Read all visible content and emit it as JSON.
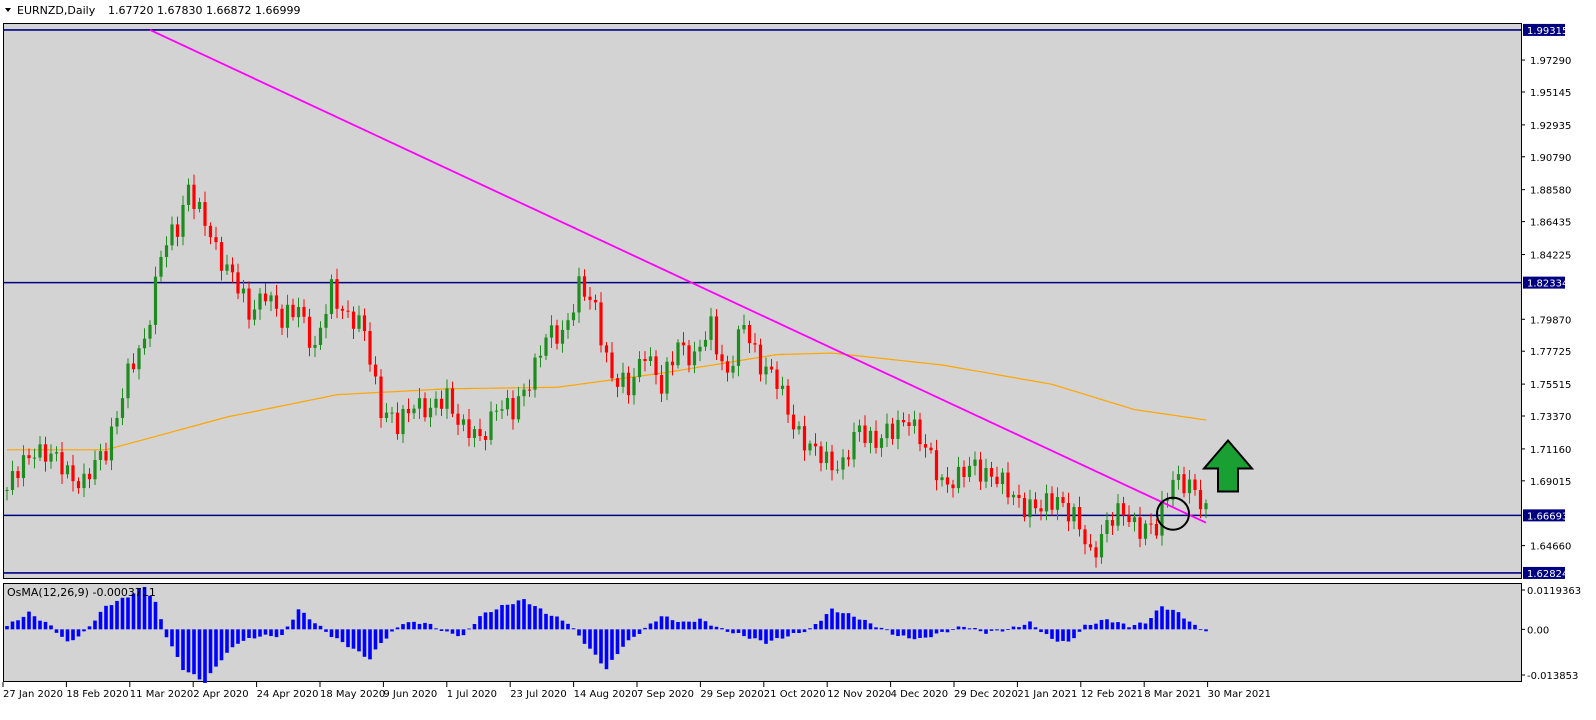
{
  "header": {
    "symbol": "EURNZD,Daily",
    "ohlc": "1.67720 1.67830 1.66872 1.66999"
  },
  "osma": {
    "label": "OsMA(12,26,9) -0.0003711"
  },
  "colors": {
    "background": "#d3d3d3",
    "bull_candle": "#1e8c1e",
    "bear_candle": "#ff0000",
    "trendline": "#ff00ff",
    "moving_average": "#ffa500",
    "level_lines": "#000080",
    "osma_bars": "#0000ff",
    "arrow": "#1aa032"
  },
  "chart_data": [
    {
      "type": "candlestick",
      "title": "",
      "y_ticks": [
        1.6466,
        1.69015,
        1.7116,
        1.7337,
        1.75515,
        1.77725,
        1.7987,
        1.84225,
        1.86435,
        1.8858,
        1.9079,
        1.92935,
        1.95145,
        1.9729
      ],
      "ylim": [
        1.6282,
        1.9931
      ],
      "x_ticks": [
        "27 Jan 2020",
        "18 Feb 2020",
        "11 Mar 2020",
        "2 Apr 2020",
        "24 Apr 2020",
        "18 May 2020",
        "9 Jun 2020",
        "1 Jul 2020",
        "23 Jul 2020",
        "14 Aug 2020",
        "7 Sep 2020",
        "29 Sep 2020",
        "21 Oct 2020",
        "12 Nov 2020",
        "4 Dec 2020",
        "29 Dec 2020",
        "21 Jan 2021",
        "12 Feb 2021",
        "8 Mar 2021",
        "30 Mar 2021"
      ],
      "horizontal_levels": [
        {
          "value": 1.99315,
          "label": "1.99315"
        },
        {
          "value": 1.82334,
          "label": "1.82334"
        },
        {
          "value": 1.66693,
          "label": "1.66693"
        },
        {
          "value": 1.62824,
          "label": "1.62824"
        }
      ],
      "series_anchor_closes": [
        [
          0,
          1.684
        ],
        [
          5,
          1.713
        ],
        [
          10,
          1.7
        ],
        [
          14,
          1.688
        ],
        [
          18,
          1.712
        ],
        [
          22,
          1.76
        ],
        [
          25,
          1.785
        ],
        [
          28,
          1.842
        ],
        [
          31,
          1.86
        ],
        [
          33,
          1.89
        ],
        [
          35,
          1.87
        ],
        [
          38,
          1.845
        ],
        [
          41,
          1.83
        ],
        [
          44,
          1.8
        ],
        [
          47,
          1.82
        ],
        [
          50,
          1.795
        ],
        [
          53,
          1.81
        ],
        [
          56,
          1.775
        ],
        [
          59,
          1.82
        ],
        [
          62,
          1.8
        ],
        [
          65,
          1.79
        ],
        [
          68,
          1.74
        ],
        [
          71,
          1.725
        ],
        [
          74,
          1.745
        ],
        [
          77,
          1.735
        ],
        [
          80,
          1.748
        ],
        [
          83,
          1.725
        ],
        [
          86,
          1.717
        ],
        [
          89,
          1.742
        ],
        [
          92,
          1.735
        ],
        [
          95,
          1.76
        ],
        [
          98,
          1.785
        ],
        [
          101,
          1.79
        ],
        [
          104,
          1.82
        ],
        [
          107,
          1.805
        ],
        [
          110,
          1.76
        ],
        [
          113,
          1.75
        ],
        [
          116,
          1.78
        ],
        [
          119,
          1.75
        ],
        [
          122,
          1.785
        ],
        [
          125,
          1.77
        ],
        [
          128,
          1.795
        ],
        [
          131,
          1.76
        ],
        [
          134,
          1.795
        ],
        [
          137,
          1.77
        ],
        [
          140,
          1.755
        ],
        [
          143,
          1.73
        ],
        [
          146,
          1.71
        ],
        [
          149,
          1.705
        ],
        [
          152,
          1.7
        ],
        [
          155,
          1.725
        ],
        [
          158,
          1.718
        ],
        [
          161,
          1.722
        ],
        [
          164,
          1.735
        ],
        [
          167,
          1.71
        ],
        [
          170,
          1.69
        ],
        [
          173,
          1.692
        ],
        [
          176,
          1.7
        ],
        [
          179,
          1.695
        ],
        [
          182,
          1.682
        ],
        [
          185,
          1.675
        ],
        [
          188,
          1.67
        ],
        [
          191,
          1.68
        ],
        [
          194,
          1.665
        ],
        [
          197,
          1.64
        ],
        [
          200,
          1.662
        ],
        [
          203,
          1.668
        ],
        [
          206,
          1.66
        ],
        [
          209,
          1.656
        ],
        [
          212,
          1.695
        ],
        [
          215,
          1.685
        ],
        [
          218,
          1.67
        ]
      ],
      "moving_average_anchors": [
        [
          0,
          1.711
        ],
        [
          18,
          1.711
        ],
        [
          40,
          1.733
        ],
        [
          60,
          1.748
        ],
        [
          80,
          1.752
        ],
        [
          100,
          1.753
        ],
        [
          120,
          1.763
        ],
        [
          140,
          1.775
        ],
        [
          150,
          1.776
        ],
        [
          170,
          1.768
        ],
        [
          190,
          1.755
        ],
        [
          205,
          1.738
        ],
        [
          218,
          1.731
        ]
      ],
      "trendline": {
        "from": [
          26,
          1.99315
        ],
        "to": [
          218,
          1.662
        ]
      },
      "annotations": [
        {
          "type": "circle",
          "at": [
            212,
            1.668
          ]
        },
        {
          "type": "up-arrow",
          "at": [
            222,
            1.685
          ]
        }
      ]
    },
    {
      "type": "histogram",
      "title": "OsMA(12,26,9)",
      "y_ticks": [
        0.0119363,
        0.0,
        -0.0138531
      ],
      "y_tick_labels": [
        "0.0119363",
        "0.00",
        "-0.013853"
      ],
      "anchors": [
        [
          0,
          0.001
        ],
        [
          4,
          0.005
        ],
        [
          8,
          0.001
        ],
        [
          11,
          -0.004
        ],
        [
          14,
          -0.001
        ],
        [
          18,
          0.007
        ],
        [
          22,
          0.01
        ],
        [
          25,
          0.013
        ],
        [
          27,
          0.008
        ],
        [
          29,
          -0.002
        ],
        [
          32,
          -0.012
        ],
        [
          36,
          -0.016
        ],
        [
          39,
          -0.009
        ],
        [
          42,
          -0.004
        ],
        [
          46,
          -0.002
        ],
        [
          50,
          -0.002
        ],
        [
          53,
          0.006
        ],
        [
          56,
          0.002
        ],
        [
          59,
          -0.002
        ],
        [
          63,
          -0.006
        ],
        [
          66,
          -0.009
        ],
        [
          68,
          -0.004
        ],
        [
          72,
          0.002
        ],
        [
          76,
          0.002
        ],
        [
          80,
          -0.001
        ],
        [
          83,
          -0.002
        ],
        [
          86,
          0.004
        ],
        [
          90,
          0.007
        ],
        [
          94,
          0.009
        ],
        [
          98,
          0.005
        ],
        [
          102,
          0.002
        ],
        [
          106,
          -0.006
        ],
        [
          109,
          -0.012
        ],
        [
          112,
          -0.005
        ],
        [
          115,
          -0.001
        ],
        [
          119,
          0.004
        ],
        [
          123,
          0.002
        ],
        [
          126,
          0.003
        ],
        [
          130,
          0.0
        ],
        [
          134,
          -0.002
        ],
        [
          138,
          -0.004
        ],
        [
          142,
          -0.002
        ],
        [
          146,
          0.0
        ],
        [
          150,
          0.006
        ],
        [
          154,
          0.004
        ],
        [
          158,
          0.001
        ],
        [
          162,
          -0.002
        ],
        [
          166,
          -0.003
        ],
        [
          170,
          -0.001
        ],
        [
          174,
          0.001
        ],
        [
          178,
          -0.001
        ],
        [
          182,
          0.0
        ],
        [
          186,
          0.002
        ],
        [
          190,
          -0.003
        ],
        [
          193,
          -0.004
        ],
        [
          196,
          0.001
        ],
        [
          200,
          0.003
        ],
        [
          204,
          0.001
        ],
        [
          207,
          0.002
        ],
        [
          210,
          0.007
        ],
        [
          213,
          0.005
        ],
        [
          216,
          0.001
        ],
        [
          218,
          -0.0004
        ]
      ]
    }
  ]
}
